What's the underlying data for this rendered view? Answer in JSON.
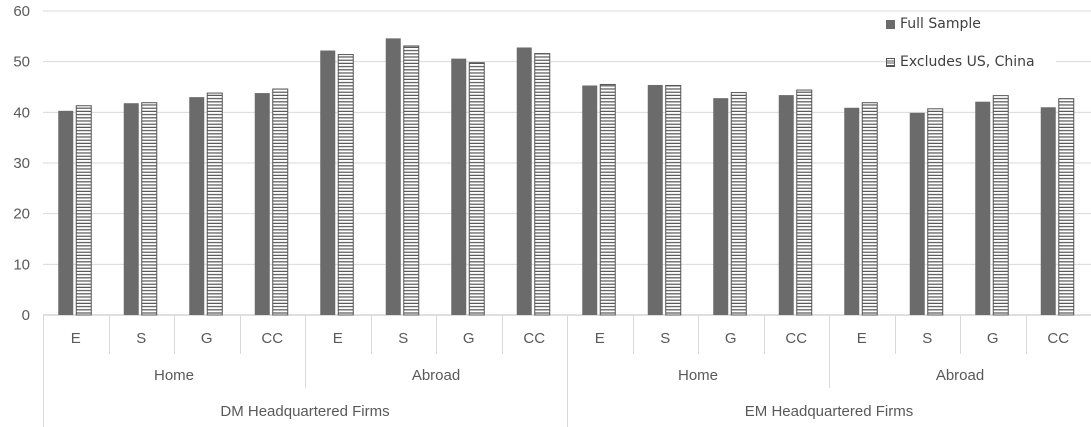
{
  "chart_data": {
    "type": "bar",
    "xlabel": "",
    "ylabel": "",
    "ylim": [
      0,
      60
    ],
    "yticks": [
      "0",
      "10",
      "20",
      "30",
      "40",
      "50",
      "60"
    ],
    "grid": true,
    "legend_position": "top-right",
    "category_groups": [
      {
        "label": "DM Headquartered Firms",
        "subgroups": [
          {
            "label": "Home",
            "categories": [
              "E",
              "S",
              "G",
              "CC"
            ]
          },
          {
            "label": "Abroad",
            "categories": [
              "E",
              "S",
              "G",
              "CC"
            ]
          }
        ]
      },
      {
        "label": "EM Headquartered Firms",
        "subgroups": [
          {
            "label": "Home",
            "categories": [
              "E",
              "S",
              "G",
              "CC"
            ]
          },
          {
            "label": "Abroad",
            "categories": [
              "E",
              "S",
              "G",
              "CC"
            ]
          }
        ]
      }
    ],
    "series": [
      {
        "name": "Full Sample",
        "color": "#6b6b6b",
        "pattern": "solid",
        "values": [
          40.3,
          41.8,
          43.0,
          43.8,
          52.2,
          54.6,
          50.6,
          52.8,
          45.3,
          45.4,
          42.8,
          43.4,
          40.9,
          39.9,
          42.1,
          41.0
        ]
      },
      {
        "name": "Excludes US, China",
        "color": "#555555",
        "pattern": "horizontal-stripes",
        "values": [
          41.3,
          41.9,
          43.8,
          44.6,
          51.4,
          53.1,
          49.8,
          51.6,
          45.5,
          45.3,
          43.9,
          44.4,
          41.9,
          40.7,
          43.3,
          42.7
        ]
      }
    ]
  }
}
